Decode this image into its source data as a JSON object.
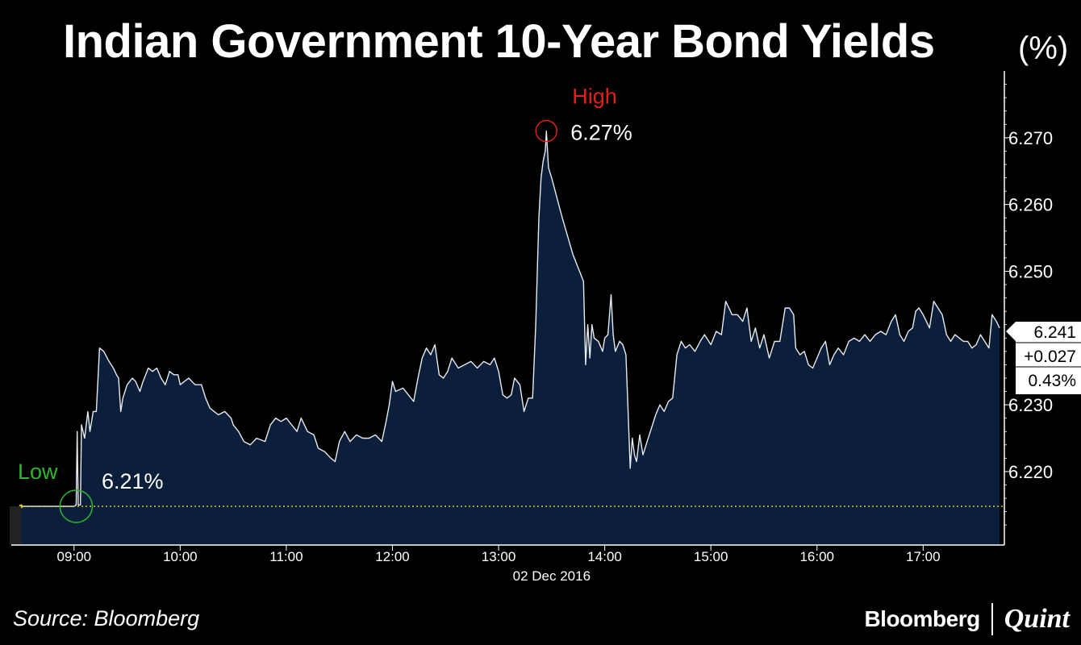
{
  "chart_data": {
    "type": "area",
    "title": "Indian Government 10-Year Bond Yields",
    "unit": "(%)",
    "date_label": "02 Dec 2016",
    "x_ticks": [
      "09:00",
      "10:00",
      "11:00",
      "12:00",
      "13:00",
      "14:00",
      "15:00",
      "16:00",
      "17:00"
    ],
    "y_ticks": [
      "6.270",
      "6.260",
      "6.250",
      "6.230",
      "6.220"
    ],
    "ylim": [
      6.209,
      6.28
    ],
    "x_range_hours": [
      8.5,
      17.75
    ],
    "grid": false,
    "colors": {
      "area": "#0b1f3b",
      "line": "#e6ebf2",
      "high": "#e0201a",
      "low": "#2fb52f",
      "baseline": "#d8c12a"
    },
    "series": [
      {
        "points": [
          [
            8.5,
            6.2148
          ],
          [
            9.0,
            6.2148
          ],
          [
            9.02,
            6.215
          ],
          [
            9.03,
            6.226
          ],
          [
            9.04,
            6.215
          ],
          [
            9.06,
            6.215
          ],
          [
            9.07,
            6.227
          ],
          [
            9.1,
            6.225
          ],
          [
            9.13,
            6.229
          ],
          [
            9.15,
            6.226
          ],
          [
            9.18,
            6.229
          ],
          [
            9.21,
            6.229
          ],
          [
            9.24,
            6.2385
          ],
          [
            9.28,
            6.238
          ],
          [
            9.33,
            6.2365
          ],
          [
            9.37,
            6.2355
          ],
          [
            9.4,
            6.2345
          ],
          [
            9.42,
            6.234
          ],
          [
            9.44,
            6.229
          ],
          [
            9.46,
            6.231
          ],
          [
            9.5,
            6.233
          ],
          [
            9.55,
            6.234
          ],
          [
            9.58,
            6.2335
          ],
          [
            9.62,
            6.232
          ],
          [
            9.65,
            6.2335
          ],
          [
            9.7,
            6.2355
          ],
          [
            9.74,
            6.235
          ],
          [
            9.78,
            6.2355
          ],
          [
            9.82,
            6.234
          ],
          [
            9.86,
            6.233
          ],
          [
            9.9,
            6.235
          ],
          [
            9.94,
            6.2345
          ],
          [
            9.98,
            6.2345
          ],
          [
            10.0,
            6.233
          ],
          [
            10.04,
            6.2335
          ],
          [
            10.08,
            6.234
          ],
          [
            10.14,
            6.233
          ],
          [
            10.2,
            6.233
          ],
          [
            10.24,
            6.231
          ],
          [
            10.28,
            6.2295
          ],
          [
            10.32,
            6.229
          ],
          [
            10.36,
            6.2285
          ],
          [
            10.42,
            6.229
          ],
          [
            10.48,
            6.228
          ],
          [
            10.5,
            6.227
          ],
          [
            10.55,
            6.226
          ],
          [
            10.6,
            6.2245
          ],
          [
            10.66,
            6.224
          ],
          [
            10.72,
            6.225
          ],
          [
            10.8,
            6.2245
          ],
          [
            10.85,
            6.227
          ],
          [
            10.9,
            6.228
          ],
          [
            10.95,
            6.2275
          ],
          [
            11.0,
            6.228
          ],
          [
            11.05,
            6.227
          ],
          [
            11.1,
            6.226
          ],
          [
            11.14,
            6.228
          ],
          [
            11.2,
            6.226
          ],
          [
            11.26,
            6.2255
          ],
          [
            11.3,
            6.2235
          ],
          [
            11.36,
            6.223
          ],
          [
            11.42,
            6.222
          ],
          [
            11.46,
            6.2215
          ],
          [
            11.5,
            6.2245
          ],
          [
            11.55,
            6.226
          ],
          [
            11.6,
            6.2245
          ],
          [
            11.66,
            6.2255
          ],
          [
            11.72,
            6.225
          ],
          [
            11.78,
            6.225
          ],
          [
            11.84,
            6.2255
          ],
          [
            11.9,
            6.2245
          ],
          [
            11.94,
            6.2275
          ],
          [
            11.97,
            6.23
          ],
          [
            12.0,
            6.2335
          ],
          [
            12.03,
            6.232
          ],
          [
            12.1,
            6.2325
          ],
          [
            12.15,
            6.2315
          ],
          [
            12.2,
            6.2305
          ],
          [
            12.24,
            6.234
          ],
          [
            12.28,
            6.237
          ],
          [
            12.32,
            6.2385
          ],
          [
            12.36,
            6.2375
          ],
          [
            12.4,
            6.239
          ],
          [
            12.44,
            6.2345
          ],
          [
            12.48,
            6.234
          ],
          [
            12.52,
            6.235
          ],
          [
            12.56,
            6.237
          ],
          [
            12.62,
            6.2355
          ],
          [
            12.68,
            6.236
          ],
          [
            12.74,
            6.2365
          ],
          [
            12.8,
            6.2355
          ],
          [
            12.86,
            6.2365
          ],
          [
            12.92,
            6.236
          ],
          [
            12.96,
            6.237
          ],
          [
            13.0,
            6.235
          ],
          [
            13.04,
            6.2315
          ],
          [
            13.08,
            6.231
          ],
          [
            13.12,
            6.2315
          ],
          [
            13.15,
            6.234
          ],
          [
            13.2,
            6.233
          ],
          [
            13.24,
            6.229
          ],
          [
            13.28,
            6.231
          ],
          [
            13.32,
            6.231
          ],
          [
            13.35,
            6.242
          ],
          [
            13.38,
            6.258
          ],
          [
            13.4,
            6.264
          ],
          [
            13.42,
            6.2665
          ],
          [
            13.44,
            6.268
          ],
          [
            13.45,
            6.271
          ],
          [
            13.47,
            6.2655
          ],
          [
            13.5,
            6.264
          ],
          [
            13.6,
            6.258
          ],
          [
            13.7,
            6.2525
          ],
          [
            13.8,
            6.2485
          ],
          [
            13.82,
            6.236
          ],
          [
            13.84,
            6.242
          ],
          [
            13.86,
            6.237
          ],
          [
            13.88,
            6.242
          ],
          [
            13.9,
            6.24
          ],
          [
            13.94,
            6.2395
          ],
          [
            13.98,
            6.238
          ],
          [
            14.0,
            6.24
          ],
          [
            14.03,
            6.2405
          ],
          [
            14.06,
            6.2465
          ],
          [
            14.08,
            6.2405
          ],
          [
            14.1,
            6.238
          ],
          [
            14.14,
            6.2395
          ],
          [
            14.17,
            6.239
          ],
          [
            14.2,
            6.2375
          ],
          [
            14.22,
            6.229
          ],
          [
            14.24,
            6.2205
          ],
          [
            14.26,
            6.225
          ],
          [
            14.28,
            6.2225
          ],
          [
            14.3,
            6.2215
          ],
          [
            14.33,
            6.2255
          ],
          [
            14.36,
            6.2225
          ],
          [
            14.4,
            6.2245
          ],
          [
            14.44,
            6.2265
          ],
          [
            14.48,
            6.2285
          ],
          [
            14.52,
            6.23
          ],
          [
            14.56,
            6.229
          ],
          [
            14.6,
            6.2305
          ],
          [
            14.64,
            6.231
          ],
          [
            14.68,
            6.2375
          ],
          [
            14.72,
            6.2395
          ],
          [
            14.76,
            6.2385
          ],
          [
            14.8,
            6.239
          ],
          [
            14.85,
            6.238
          ],
          [
            14.9,
            6.2395
          ],
          [
            14.94,
            6.2405
          ],
          [
            15.0,
            6.239
          ],
          [
            15.05,
            6.241
          ],
          [
            15.1,
            6.2405
          ],
          [
            15.14,
            6.2455
          ],
          [
            15.17,
            6.2445
          ],
          [
            15.2,
            6.2435
          ],
          [
            15.25,
            6.2435
          ],
          [
            15.3,
            6.2425
          ],
          [
            15.34,
            6.2445
          ],
          [
            15.38,
            6.2395
          ],
          [
            15.42,
            6.2415
          ],
          [
            15.46,
            6.2385
          ],
          [
            15.5,
            6.2405
          ],
          [
            15.55,
            6.237
          ],
          [
            15.6,
            6.2395
          ],
          [
            15.65,
            6.2395
          ],
          [
            15.7,
            6.2445
          ],
          [
            15.74,
            6.2445
          ],
          [
            15.78,
            6.2435
          ],
          [
            15.8,
            6.2385
          ],
          [
            15.84,
            6.2375
          ],
          [
            15.88,
            6.238
          ],
          [
            15.92,
            6.236
          ],
          [
            15.96,
            6.2355
          ],
          [
            16.0,
            6.237
          ],
          [
            16.04,
            6.2385
          ],
          [
            16.08,
            6.2395
          ],
          [
            16.12,
            6.236
          ],
          [
            16.16,
            6.2375
          ],
          [
            16.2,
            6.2385
          ],
          [
            16.25,
            6.2375
          ],
          [
            16.3,
            6.2395
          ],
          [
            16.35,
            6.24
          ],
          [
            16.4,
            6.2395
          ],
          [
            16.45,
            6.2405
          ],
          [
            16.5,
            6.2395
          ],
          [
            16.55,
            6.2405
          ],
          [
            16.6,
            6.241
          ],
          [
            16.65,
            6.2405
          ],
          [
            16.7,
            6.2425
          ],
          [
            16.74,
            6.2435
          ],
          [
            16.78,
            6.2405
          ],
          [
            16.82,
            6.2395
          ],
          [
            16.86,
            6.241
          ],
          [
            16.9,
            6.2415
          ],
          [
            16.93,
            6.244
          ],
          [
            16.96,
            6.2445
          ],
          [
            17.0,
            6.2435
          ],
          [
            17.03,
            6.2425
          ],
          [
            17.06,
            6.2415
          ],
          [
            17.1,
            6.2455
          ],
          [
            17.14,
            6.2445
          ],
          [
            17.18,
            6.2435
          ],
          [
            17.22,
            6.2405
          ],
          [
            17.26,
            6.2395
          ],
          [
            17.3,
            6.2405
          ],
          [
            17.34,
            6.24
          ],
          [
            17.38,
            6.2395
          ],
          [
            17.42,
            6.2395
          ],
          [
            17.46,
            6.2385
          ],
          [
            17.5,
            6.239
          ],
          [
            17.54,
            6.2405
          ],
          [
            17.58,
            6.2395
          ],
          [
            17.62,
            6.2385
          ],
          [
            17.65,
            6.2435
          ],
          [
            17.69,
            6.2425
          ],
          [
            17.72,
            6.2415
          ]
        ]
      }
    ],
    "annotations": {
      "high": {
        "label": "High",
        "value_label": "6.27%",
        "x": 13.45,
        "y": 6.271
      },
      "low": {
        "label": "Low",
        "value_label": "6.21%",
        "x": 9.02,
        "y": 6.2148
      }
    },
    "baseline_y": 6.2148,
    "last_value": {
      "value": "6.241",
      "change": "+0.027",
      "percent": "0.43%"
    }
  },
  "footer": {
    "source": "Source: Bloomberg",
    "brand_left": "Bloomberg",
    "brand_right": "Quint"
  }
}
